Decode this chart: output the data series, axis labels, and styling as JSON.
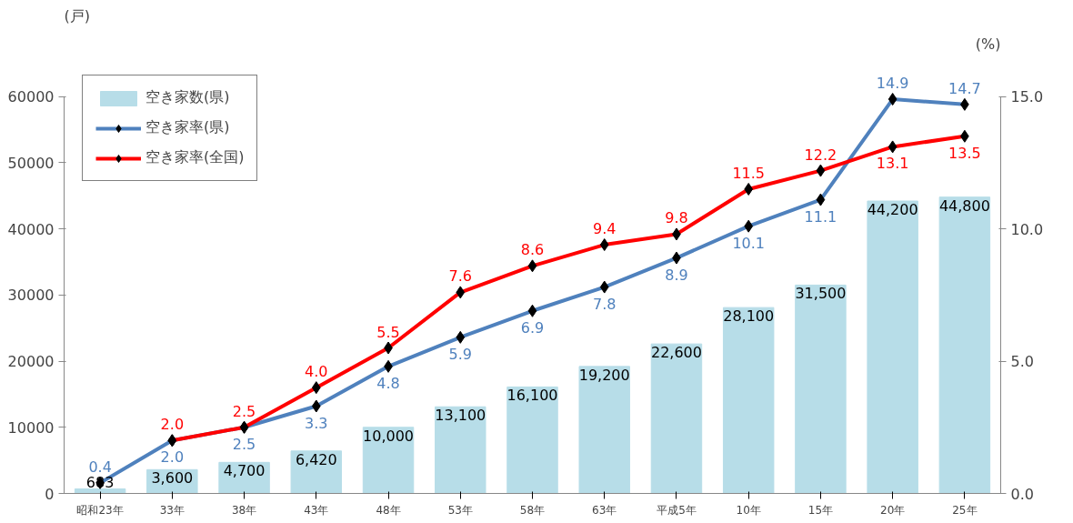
{
  "chart_data": {
    "type": "bar",
    "ylabel": "(戸)",
    "y2label": "(%)",
    "categories": [
      "昭和23年",
      "33年",
      "38年",
      "43年",
      "48年",
      "53年",
      "58年",
      "63年",
      "平成5年",
      "10年",
      "15年",
      "20年",
      "25年"
    ],
    "series": [
      {
        "name": "空き家数(県)",
        "type": "bar",
        "color": "#b7dde8",
        "values": [
          683,
          3600,
          4700,
          6420,
          10000,
          13100,
          16100,
          19200,
          22600,
          28100,
          31500,
          44200,
          44800
        ],
        "value_labels": [
          "683",
          "3,600",
          "4,700",
          "6,420",
          "10,000",
          "13,100",
          "16,100",
          "19,200",
          "22,600",
          "28,100",
          "31,500",
          "44,200",
          "44,800"
        ]
      },
      {
        "name": "空き家率(県)",
        "type": "line",
        "axis": "y2",
        "color": "#4f81bd",
        "values": [
          0.4,
          2.0,
          2.5,
          3.3,
          4.8,
          5.9,
          6.9,
          7.8,
          8.9,
          10.1,
          11.1,
          14.9,
          14.7
        ],
        "value_labels": [
          "0.4",
          "2.0",
          "2.5",
          "3.3",
          "4.8",
          "5.9",
          "6.9",
          "7.8",
          "8.9",
          "10.1",
          "11.1",
          "14.9",
          "14.7"
        ]
      },
      {
        "name": "空き家率(全国)",
        "type": "line",
        "axis": "y2",
        "color": "#ff0000",
        "values": [
          null,
          2.0,
          2.5,
          4.0,
          5.5,
          7.6,
          8.6,
          9.4,
          9.8,
          11.5,
          12.2,
          13.1,
          13.5
        ],
        "value_labels": [
          null,
          "2.0",
          "2.5",
          "4.0",
          "5.5",
          "7.6",
          "8.6",
          "9.4",
          "9.8",
          "11.5",
          "12.2",
          "13.1",
          "13.5"
        ]
      }
    ],
    "ylim": [
      0,
      60000
    ],
    "yticks": [
      0,
      10000,
      20000,
      30000,
      40000,
      50000,
      60000
    ],
    "y2lim": [
      0,
      15
    ],
    "y2ticks": [
      {
        "value": 0,
        "label": "0.0"
      },
      {
        "value": 5,
        "label": "5.0"
      },
      {
        "value": 10,
        "label": "10.0"
      },
      {
        "value": 15,
        "label": "15.0"
      }
    ],
    "grid": false,
    "legend": "top left",
    "marker": "diamond",
    "line_style": "solid"
  }
}
